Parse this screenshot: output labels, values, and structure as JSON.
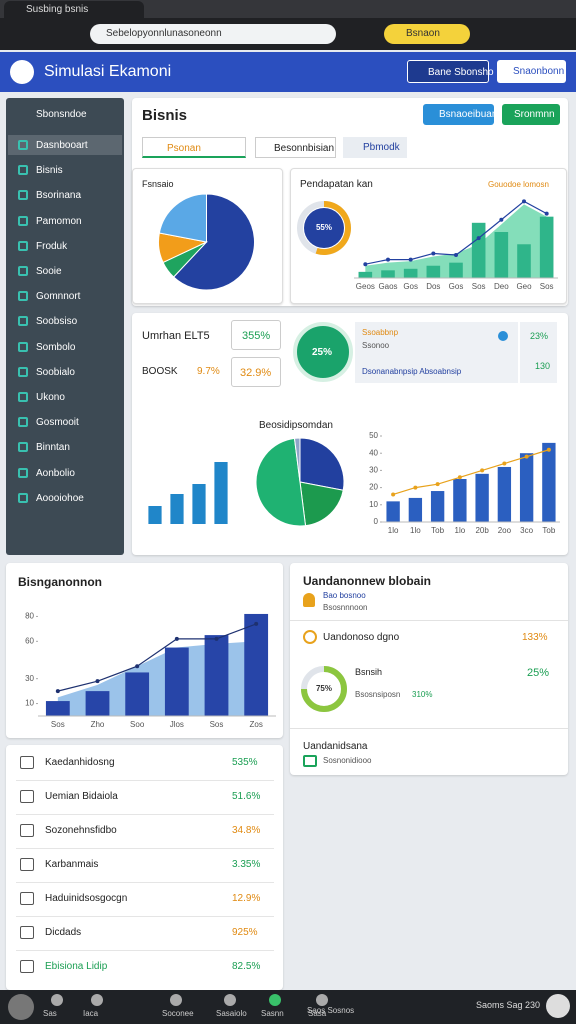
{
  "browser": {
    "tab_title": "Susbing bsnis",
    "url": "Sebelopyonnlunasoneonn",
    "profile": "Bsnaon"
  },
  "header": {
    "title": "Simulasi Ekamoni",
    "buttons": [
      "Bane Sbonsho",
      "Snaonbonn"
    ]
  },
  "sidebar": {
    "title": "Sbonsndoe",
    "items": [
      "Dasnbooart",
      "Bisnis",
      "Bsorinana",
      "Pamomon",
      "Froduk",
      "Sooie",
      "Gomnnort",
      "Soobsiso",
      "Sombolo",
      "Soobialo",
      "Ukono",
      "Gosmooit",
      "Binntan",
      "Aonbolio",
      "Aoooiohoe"
    ]
  },
  "business": {
    "title": "Bisnis",
    "buttons": [
      "Bsnaoeibuan",
      "Sronmnn"
    ],
    "tabs": [
      "Psonan",
      "Besonnbisian",
      "Pbmodk"
    ]
  },
  "kpis": {
    "rows": [
      {
        "label": "Umrhan ELT5",
        "value": "355%"
      },
      {
        "label": "BOOSK",
        "mid": "9.7%",
        "value": "32.9%"
      }
    ],
    "circle": "25%",
    "info": {
      "title": "Ssoabbnp",
      "subtitle": "Ssonoo",
      "link": "Dsonanabnpsip Absoabnsip",
      "side": [
        "23%",
        "130"
      ]
    }
  },
  "market": {
    "title": "Uandanonnew blobain",
    "subtitle": "Bao bosnoo",
    "note": "Bsosnnnoon",
    "row": {
      "label": "Uandonoso dgno",
      "value": "133%"
    },
    "detail": {
      "label": "Bsnsih",
      "value": "25%",
      "text": "Bsosnsiposn",
      "text_value": "310%"
    },
    "section": {
      "title": "Uandanidsana",
      "item": "Sosnonidiooo"
    }
  },
  "list": [
    {
      "label": "Kaedanhidosng",
      "value": "535%",
      "color": "#1a9e52"
    },
    {
      "label": "Uemian Bidaiola",
      "value": "51.6%",
      "color": "#1a9e52"
    },
    {
      "label": "Sozonehnsfidbo",
      "value": "34.8%",
      "color": "#e08a12"
    },
    {
      "label": "Karbanmais",
      "value": "3.35%",
      "color": "#1a9e52"
    },
    {
      "label": "Haduinidsosgocgn",
      "value": "12.9%",
      "color": "#e08a12"
    },
    {
      "label": "Dicdads",
      "value": "925%",
      "color": "#e08a12"
    },
    {
      "label": "Ebisiona Lidip",
      "value": "82.5%",
      "color": "#1a9e52"
    }
  ],
  "taskbar": {
    "items": [
      "Sas",
      "Iaca",
      "Soconee",
      "Sasaiolo",
      "Sasnn",
      "Sasa",
      "Saos Sosnos"
    ],
    "status": "Saoms Sag 230"
  },
  "chart_data": [
    {
      "type": "pie",
      "title": "Fsnsaio",
      "values": [
        62,
        6,
        10,
        22
      ],
      "colors": [
        "#2341a0",
        "#1fa45f",
        "#f29d1a",
        "#5aa8e6"
      ]
    },
    {
      "type": "donut",
      "title": "Pendapatan kan",
      "values": [
        55
      ],
      "value_labels": [
        "55%"
      ],
      "colors": [
        "#f0a81c"
      ]
    },
    {
      "type": "combo",
      "subtitle": "Gouodoe lomosn",
      "categories": [
        "Geos",
        "Gaos",
        "Gos",
        "Dos",
        "Gos",
        "Sos",
        "Deo",
        "Geo",
        "Sos"
      ],
      "ylim": [
        0,
        60
      ],
      "series": [
        {
          "kind": "area",
          "color": "#6fd8ae",
          "values": [
            8,
            10,
            11,
            14,
            16,
            22,
            35,
            48,
            40
          ]
        },
        {
          "kind": "bar",
          "color": "#2fb58a",
          "values": [
            4,
            5,
            6,
            8,
            10,
            36,
            30,
            22,
            40
          ]
        },
        {
          "kind": "line",
          "color": "#2341a0",
          "values": [
            9,
            12,
            12,
            16,
            15,
            26,
            38,
            50,
            42
          ]
        }
      ]
    },
    {
      "type": "bar",
      "values": [
        18,
        30,
        40,
        62
      ],
      "ylim": [
        0,
        80
      ],
      "color": "#2086c9"
    },
    {
      "type": "pie",
      "title": "Beosidipsomdan",
      "values": [
        28,
        20,
        50,
        2
      ],
      "colors": [
        "#22409f",
        "#1c9a4e",
        "#1fb272",
        "#8fa5c8"
      ]
    },
    {
      "type": "combo",
      "categories": [
        "1lo",
        "1lo",
        "Tob",
        "1lo",
        "20b",
        "2oo",
        "3co",
        "Tob"
      ],
      "ylim": [
        0,
        50
      ],
      "yticks": [
        0,
        10,
        20,
        30,
        40,
        50
      ],
      "series": [
        {
          "kind": "bar",
          "color": "#2b5fc0",
          "values": [
            12,
            14,
            18,
            25,
            28,
            32,
            40,
            46
          ]
        },
        {
          "kind": "line",
          "color": "#e8a21c",
          "values": [
            16,
            20,
            22,
            26,
            30,
            34,
            38,
            42
          ]
        }
      ]
    },
    {
      "type": "combo",
      "title": "Bisnganonnon",
      "categories": [
        "Sos",
        "Zho",
        "Soo",
        "Jlos",
        "Sos",
        "Zos"
      ],
      "ylim": [
        0,
        90
      ],
      "yticks": [
        10,
        30,
        60,
        80
      ],
      "series": [
        {
          "kind": "area",
          "color": "#8ab8e6",
          "values": [
            15,
            25,
            40,
            55,
            58,
            60
          ]
        },
        {
          "kind": "bar",
          "color": "#2745a8",
          "values": [
            12,
            20,
            35,
            55,
            65,
            82
          ]
        },
        {
          "kind": "line",
          "color": "#1e3170",
          "values": [
            20,
            28,
            40,
            62,
            62,
            74
          ]
        }
      ]
    },
    {
      "type": "donut",
      "values": [
        75
      ],
      "value_labels": [
        "75%"
      ],
      "colors": [
        "#8cc63f"
      ]
    }
  ]
}
